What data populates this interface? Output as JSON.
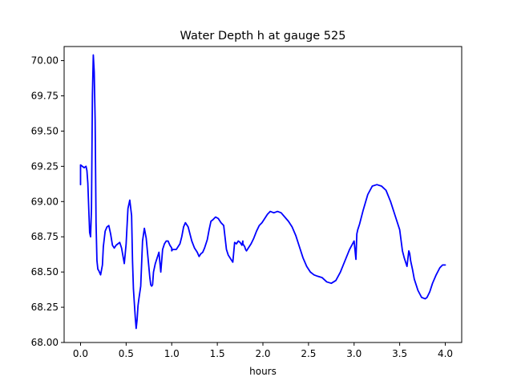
{
  "chart_data": {
    "type": "line",
    "title": "Water Depth h at gauge 525",
    "xlabel": "hours",
    "ylabel": "",
    "xlim": [
      -0.18,
      4.18
    ],
    "ylim": [
      68.0,
      70.1
    ],
    "grid": false,
    "x_ticks": [
      0.0,
      0.5,
      1.0,
      1.5,
      2.0,
      2.5,
      3.0,
      3.5,
      4.0
    ],
    "x_tick_labels": [
      "0.0",
      "0.5",
      "1.0",
      "1.5",
      "2.0",
      "2.5",
      "3.0",
      "3.5",
      "4.0"
    ],
    "y_ticks": [
      68.0,
      68.25,
      68.5,
      68.75,
      69.0,
      69.25,
      69.5,
      69.75,
      70.0
    ],
    "y_tick_labels": [
      "68.00",
      "68.25",
      "68.50",
      "68.75",
      "69.00",
      "69.25",
      "69.50",
      "69.75",
      "70.00"
    ],
    "series": [
      {
        "color": "#0000ff",
        "x": [
          0.0,
          0.0,
          0.02,
          0.04,
          0.06,
          0.07,
          0.08,
          0.09,
          0.1,
          0.11,
          0.12,
          0.13,
          0.14,
          0.15,
          0.16,
          0.17,
          0.18,
          0.19,
          0.2,
          0.22,
          0.24,
          0.25,
          0.27,
          0.29,
          0.31,
          0.33,
          0.35,
          0.37,
          0.38,
          0.39,
          0.41,
          0.43,
          0.45,
          0.48,
          0.5,
          0.52,
          0.54,
          0.56,
          0.57,
          0.58,
          0.6,
          0.61,
          0.62,
          0.63,
          0.64,
          0.66,
          0.68,
          0.7,
          0.72,
          0.74,
          0.76,
          0.77,
          0.78,
          0.79,
          0.8,
          0.82,
          0.84,
          0.86,
          0.88,
          0.9,
          0.92,
          0.94,
          0.96,
          0.98,
          1.0,
          1.0,
          1.01,
          1.03,
          1.05,
          1.07,
          1.09,
          1.11,
          1.13,
          1.15,
          1.18,
          1.22,
          1.25,
          1.28,
          1.3,
          1.32,
          1.34,
          1.36,
          1.39,
          1.41,
          1.43,
          1.45,
          1.48,
          1.51,
          1.54,
          1.57,
          1.6,
          1.62,
          1.65,
          1.67,
          1.69,
          1.71,
          1.73,
          1.75,
          1.77,
          1.78,
          1.78,
          1.8,
          1.81,
          1.82,
          1.83,
          1.85,
          1.87,
          1.9,
          1.93,
          1.96,
          1.99,
          2.02,
          2.05,
          2.08,
          2.12,
          2.16,
          2.2,
          2.24,
          2.28,
          2.32,
          2.36,
          2.4,
          2.44,
          2.48,
          2.52,
          2.56,
          2.6,
          2.65,
          2.7,
          2.75,
          2.8,
          2.85,
          2.9,
          2.95,
          3.0,
          3.02,
          3.03,
          3.04,
          3.06,
          3.1,
          3.15,
          3.2,
          3.25,
          3.3,
          3.35,
          3.4,
          3.45,
          3.5,
          3.53,
          3.55,
          3.56,
          3.58,
          3.6,
          3.61,
          3.62,
          3.64,
          3.66,
          3.7,
          3.74,
          3.78,
          3.8,
          3.83,
          3.86,
          3.9,
          3.94,
          3.97,
          4.0
        ],
        "y": [
          69.12,
          69.26,
          69.25,
          69.24,
          69.25,
          69.22,
          69.13,
          68.95,
          68.78,
          68.75,
          68.95,
          69.75,
          70.04,
          69.92,
          69.58,
          68.85,
          68.58,
          68.52,
          68.51,
          68.48,
          68.55,
          68.68,
          68.79,
          68.82,
          68.83,
          68.77,
          68.69,
          68.67,
          68.68,
          68.69,
          68.7,
          68.71,
          68.67,
          68.56,
          68.7,
          68.95,
          69.01,
          68.9,
          68.58,
          68.38,
          68.18,
          68.1,
          68.16,
          68.26,
          68.31,
          68.4,
          68.72,
          68.81,
          68.74,
          68.6,
          68.46,
          68.41,
          68.4,
          68.41,
          68.5,
          68.56,
          68.6,
          68.64,
          68.5,
          68.66,
          68.7,
          68.72,
          68.72,
          68.69,
          68.67,
          68.65,
          68.66,
          68.66,
          68.66,
          68.68,
          68.7,
          68.75,
          68.82,
          68.85,
          68.82,
          68.72,
          68.67,
          68.64,
          68.61,
          68.63,
          68.64,
          68.67,
          68.73,
          68.8,
          68.86,
          68.87,
          68.89,
          68.88,
          68.85,
          68.83,
          68.66,
          68.62,
          68.59,
          68.57,
          68.71,
          68.7,
          68.72,
          68.71,
          68.69,
          68.72,
          68.7,
          68.68,
          68.66,
          68.65,
          68.66,
          68.68,
          68.7,
          68.74,
          68.79,
          68.83,
          68.85,
          68.88,
          68.91,
          68.93,
          68.92,
          68.93,
          68.92,
          68.89,
          68.86,
          68.82,
          68.76,
          68.68,
          68.6,
          68.54,
          68.5,
          68.48,
          68.47,
          68.46,
          68.43,
          68.42,
          68.44,
          68.5,
          68.58,
          68.66,
          68.72,
          68.59,
          68.77,
          68.8,
          68.84,
          68.94,
          69.05,
          69.11,
          69.12,
          69.11,
          69.08,
          69.0,
          68.9,
          68.8,
          68.65,
          68.6,
          68.58,
          68.54,
          68.65,
          68.63,
          68.58,
          68.52,
          68.45,
          68.37,
          68.32,
          68.31,
          68.32,
          68.36,
          68.42,
          68.48,
          68.53,
          68.55,
          68.55
        ]
      }
    ]
  }
}
